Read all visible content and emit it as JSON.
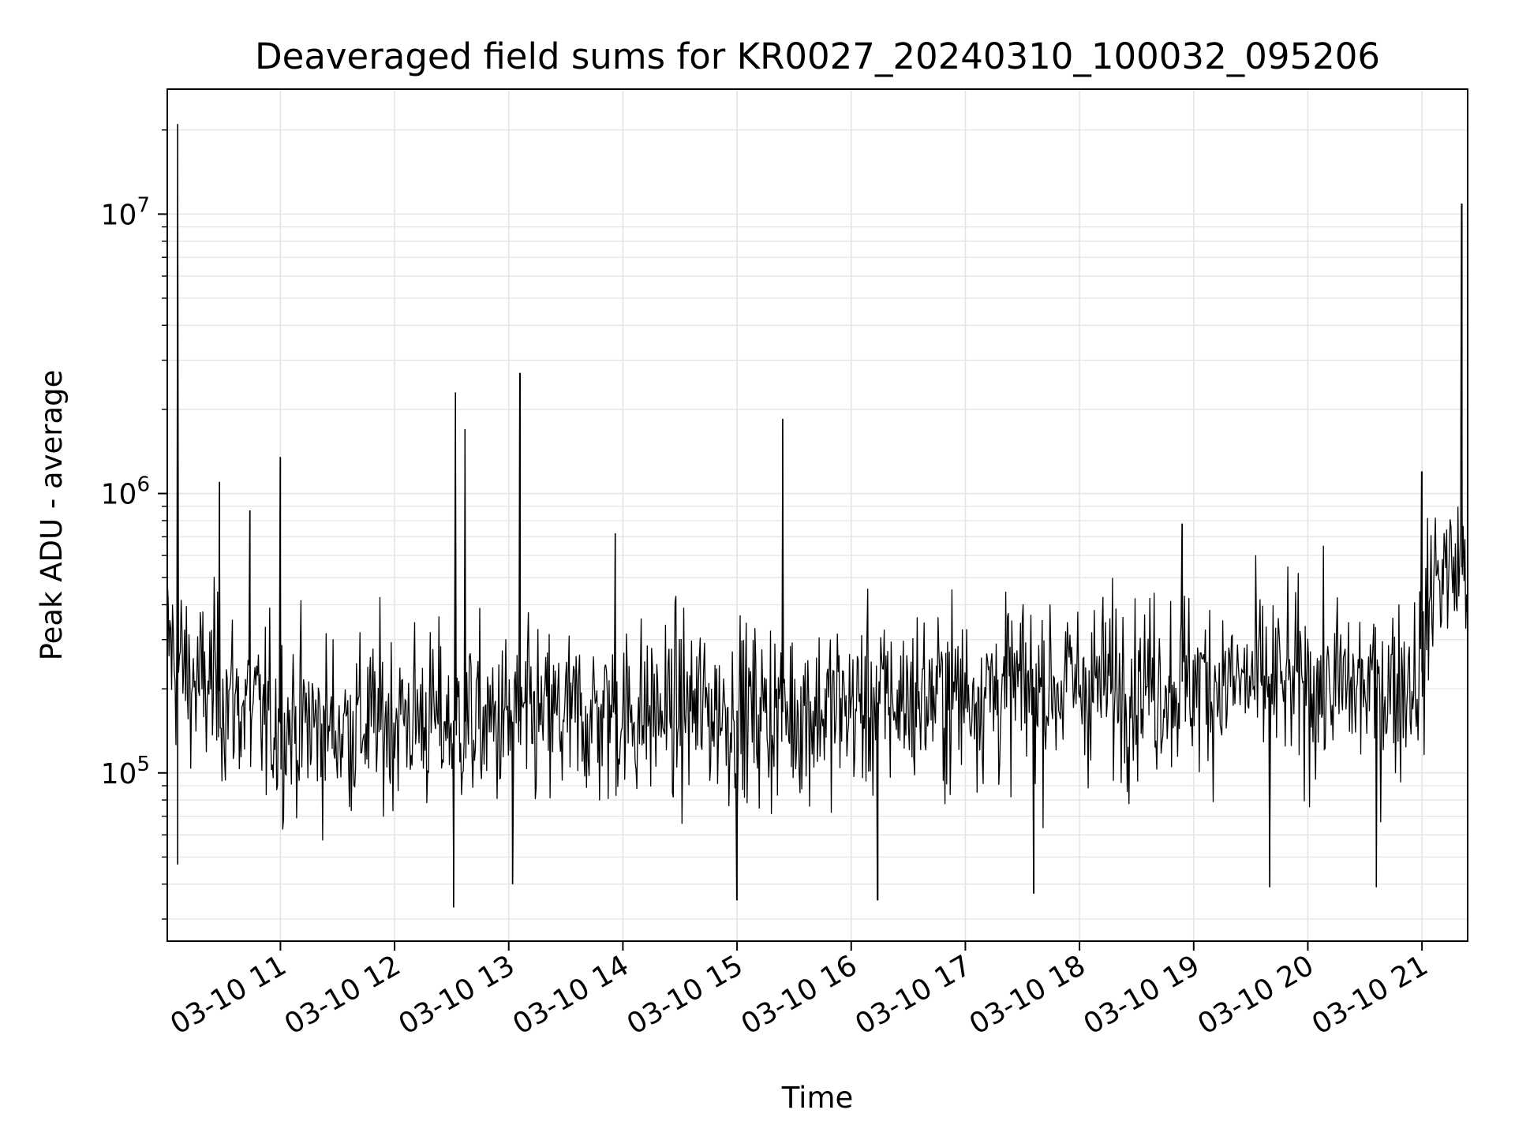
{
  "chart_data": {
    "type": "line",
    "title": "Deaveraged field sums for KR0027_20240310_100032_095206",
    "xlabel": "Time",
    "ylabel": "Peak ADU - average",
    "yscale": "log",
    "xlim": [
      "2024-03-10T10:00:32",
      "2024-03-10T21:24:00"
    ],
    "ylim": [
      25000,
      28000000
    ],
    "grid": true,
    "legend": "none",
    "line_color": "#000000",
    "grid_color": "#e5e5e5",
    "x_ticks": [
      "03-10 11",
      "03-10 12",
      "03-10 13",
      "03-10 14",
      "03-10 15",
      "03-10 16",
      "03-10 17",
      "03-10 18",
      "03-10 19",
      "03-10 20",
      "03-10 21"
    ],
    "x_tick_values": [
      "2024-03-10T11:00",
      "2024-03-10T12:00",
      "2024-03-10T13:00",
      "2024-03-10T14:00",
      "2024-03-10T15:00",
      "2024-03-10T16:00",
      "2024-03-10T17:00",
      "2024-03-10T18:00",
      "2024-03-10T19:00",
      "2024-03-10T20:00",
      "2024-03-10T21:00"
    ],
    "y_ticks": [
      {
        "base": "10",
        "exp": "5",
        "value": 100000
      },
      {
        "base": "10",
        "exp": "6",
        "value": 1000000
      },
      {
        "base": "10",
        "exp": "7",
        "value": 10000000
      }
    ],
    "series": [
      {
        "x": [
          "2024-03-10T10:00:32",
          "2024-03-10T10:06:00",
          "2024-03-10T10:12:00",
          "2024-03-10T10:18:00",
          "2024-03-10T10:24:00",
          "2024-03-10T10:30:00",
          "2024-03-10T10:36:00",
          "2024-03-10T10:42:00",
          "2024-03-10T10:48:00",
          "2024-03-10T10:54:00",
          "2024-03-10T11:00:00",
          "2024-03-10T11:06:00",
          "2024-03-10T11:12:00",
          "2024-03-10T11:18:00",
          "2024-03-10T11:24:00",
          "2024-03-10T11:30:00",
          "2024-03-10T11:36:00",
          "2024-03-10T11:42:00",
          "2024-03-10T11:48:00",
          "2024-03-10T11:54:00",
          "2024-03-10T12:00:00",
          "2024-03-10T12:06:00",
          "2024-03-10T12:12:00",
          "2024-03-10T12:18:00",
          "2024-03-10T12:24:00",
          "2024-03-10T12:30:00",
          "2024-03-10T12:36:00",
          "2024-03-10T12:42:00",
          "2024-03-10T12:48:00",
          "2024-03-10T12:54:00",
          "2024-03-10T13:00:00",
          "2024-03-10T13:06:00",
          "2024-03-10T13:12:00",
          "2024-03-10T13:18:00",
          "2024-03-10T13:24:00",
          "2024-03-10T13:30:00",
          "2024-03-10T13:36:00",
          "2024-03-10T13:42:00",
          "2024-03-10T13:48:00",
          "2024-03-10T13:54:00",
          "2024-03-10T14:00:00",
          "2024-03-10T14:06:00",
          "2024-03-10T14:12:00",
          "2024-03-10T14:18:00",
          "2024-03-10T14:24:00",
          "2024-03-10T14:30:00",
          "2024-03-10T14:36:00",
          "2024-03-10T14:42:00",
          "2024-03-10T14:48:00",
          "2024-03-10T14:54:00",
          "2024-03-10T15:00:00",
          "2024-03-10T15:06:00",
          "2024-03-10T15:12:00",
          "2024-03-10T15:18:00",
          "2024-03-10T15:24:00",
          "2024-03-10T15:30:00",
          "2024-03-10T15:36:00",
          "2024-03-10T15:42:00",
          "2024-03-10T15:48:00",
          "2024-03-10T15:54:00",
          "2024-03-10T16:00:00",
          "2024-03-10T16:06:00",
          "2024-03-10T16:12:00",
          "2024-03-10T16:18:00",
          "2024-03-10T16:24:00",
          "2024-03-10T16:30:00",
          "2024-03-10T16:36:00",
          "2024-03-10T16:42:00",
          "2024-03-10T16:48:00",
          "2024-03-10T16:54:00",
          "2024-03-10T17:00:00",
          "2024-03-10T17:06:00",
          "2024-03-10T17:12:00",
          "2024-03-10T17:18:00",
          "2024-03-10T17:24:00",
          "2024-03-10T17:30:00",
          "2024-03-10T17:36:00",
          "2024-03-10T17:42:00",
          "2024-03-10T17:48:00",
          "2024-03-10T17:54:00",
          "2024-03-10T18:00:00",
          "2024-03-10T18:06:00",
          "2024-03-10T18:12:00",
          "2024-03-10T18:18:00",
          "2024-03-10T18:24:00",
          "2024-03-10T18:30:00",
          "2024-03-10T18:36:00",
          "2024-03-10T18:42:00",
          "2024-03-10T18:48:00",
          "2024-03-10T18:54:00",
          "2024-03-10T19:00:00",
          "2024-03-10T19:06:00",
          "2024-03-10T19:12:00",
          "2024-03-10T19:18:00",
          "2024-03-10T19:24:00",
          "2024-03-10T19:30:00",
          "2024-03-10T19:36:00",
          "2024-03-10T19:42:00",
          "2024-03-10T19:48:00",
          "2024-03-10T19:54:00",
          "2024-03-10T20:00:00",
          "2024-03-10T20:06:00",
          "2024-03-10T20:12:00",
          "2024-03-10T20:18:00",
          "2024-03-10T20:24:00",
          "2024-03-10T20:30:00",
          "2024-03-10T20:36:00",
          "2024-03-10T20:42:00",
          "2024-03-10T20:48:00",
          "2024-03-10T20:54:00",
          "2024-03-10T21:00:00",
          "2024-03-10T21:06:00",
          "2024-03-10T21:12:00",
          "2024-03-10T21:18:00",
          "2024-03-10T21:24:00"
        ],
        "y": [
          300000,
          250000,
          220000,
          200000,
          210000,
          190000,
          180000,
          170000,
          160000,
          155000,
          150000,
          150000,
          150000,
          148000,
          147000,
          146000,
          147000,
          150000,
          152000,
          155000,
          158000,
          160000,
          158000,
          156000,
          155000,
          154000,
          153000,
          152000,
          150000,
          150000,
          152000,
          153000,
          154000,
          155000,
          156000,
          157000,
          158000,
          159000,
          160000,
          162000,
          163000,
          164000,
          165000,
          166000,
          167000,
          168000,
          169000,
          170000,
          170000,
          168000,
          167000,
          166000,
          165000,
          164000,
          165000,
          166000,
          167000,
          168000,
          170000,
          172000,
          174000,
          176000,
          178000,
          180000,
          182000,
          184000,
          186000,
          188000,
          190000,
          192000,
          194000,
          196000,
          198000,
          200000,
          201000,
          202000,
          203000,
          204000,
          205000,
          206000,
          207000,
          208000,
          209000,
          210000,
          211000,
          212000,
          212000,
          212000,
          212000,
          212000,
          212000,
          212000,
          211000,
          210000,
          210000,
          210000,
          209000,
          208000,
          207000,
          206000,
          205000,
          204000,
          203000,
          202000,
          202000,
          202000,
          202000,
          205000,
          210000,
          220000,
          230000,
          520000,
          530000,
          540000,
          550000
        ]
      }
    ],
    "spikes": [
      {
        "x": "2024-03-10T10:06:00",
        "y": 21000000
      },
      {
        "x": "2024-03-10T10:28:00",
        "y": 1100000
      },
      {
        "x": "2024-03-10T10:44:00",
        "y": 870000
      },
      {
        "x": "2024-03-10T11:00:00",
        "y": 1350000
      },
      {
        "x": "2024-03-10T12:32:00",
        "y": 2300000
      },
      {
        "x": "2024-03-10T12:37:00",
        "y": 1700000
      },
      {
        "x": "2024-03-10T13:06:00",
        "y": 2700000
      },
      {
        "x": "2024-03-10T13:56:00",
        "y": 720000
      },
      {
        "x": "2024-03-10T15:24:00",
        "y": 1850000
      },
      {
        "x": "2024-03-10T18:54:00",
        "y": 780000
      },
      {
        "x": "2024-03-10T21:00:00",
        "y": 1200000
      },
      {
        "x": "2024-03-10T21:21:00",
        "y": 10900000
      }
    ],
    "dips": [
      {
        "x": "2024-03-10T10:06:00",
        "y": 47000
      },
      {
        "x": "2024-03-10T12:31:00",
        "y": 33000
      },
      {
        "x": "2024-03-10T13:02:00",
        "y": 40000
      },
      {
        "x": "2024-03-10T15:00:00",
        "y": 35000
      },
      {
        "x": "2024-03-10T16:14:00",
        "y": 35000
      },
      {
        "x": "2024-03-10T17:36:00",
        "y": 37000
      },
      {
        "x": "2024-03-10T19:40:00",
        "y": 39000
      },
      {
        "x": "2024-03-10T20:36:00",
        "y": 39000
      }
    ]
  }
}
